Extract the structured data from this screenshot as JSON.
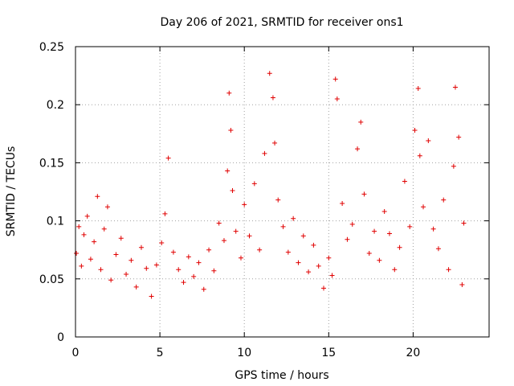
{
  "chart_data": {
    "type": "scatter",
    "title": "Day 206 of 2021, SRMTID for receiver ons1",
    "xlabel": "GPS time / hours",
    "ylabel": "SRMTID / TECUs",
    "xlim": [
      0,
      24.5
    ],
    "ylim": [
      0,
      0.25
    ],
    "x_ticks": [
      0,
      5,
      10,
      15,
      20
    ],
    "x_tick_labels": [
      "0",
      "5",
      "10",
      "15",
      "20"
    ],
    "y_ticks": [
      0,
      0.05,
      0.1,
      0.15,
      0.2,
      0.25
    ],
    "y_tick_labels": [
      "0",
      "0.05",
      "0.1",
      "0.15",
      "0.2",
      "0.25"
    ],
    "grid": true,
    "marker": "+",
    "color": "#e00000",
    "series": [
      {
        "name": "SRMTID",
        "x": [
          0.05,
          0.2,
          0.35,
          0.5,
          0.7,
          0.9,
          1.1,
          1.3,
          1.5,
          1.7,
          1.9,
          2.1,
          2.4,
          2.7,
          3.0,
          3.3,
          3.6,
          3.9,
          4.2,
          4.5,
          4.8,
          5.1,
          5.3,
          5.5,
          5.8,
          6.1,
          6.4,
          6.7,
          7.0,
          7.3,
          7.6,
          7.9,
          8.2,
          8.5,
          8.8,
          9.0,
          9.1,
          9.2,
          9.3,
          9.5,
          9.8,
          10.0,
          10.3,
          10.6,
          10.9,
          11.2,
          11.5,
          11.7,
          11.8,
          12.0,
          12.3,
          12.6,
          12.9,
          13.2,
          13.5,
          13.8,
          14.1,
          14.4,
          14.7,
          15.0,
          15.2,
          15.4,
          15.5,
          15.8,
          16.1,
          16.4,
          16.7,
          16.9,
          17.1,
          17.4,
          17.7,
          18.0,
          18.3,
          18.6,
          18.9,
          19.2,
          19.5,
          19.8,
          20.1,
          20.3,
          20.4,
          20.6,
          20.9,
          21.2,
          21.5,
          21.8,
          22.1,
          22.4,
          22.5,
          22.7,
          22.9,
          23.0
        ],
        "y": [
          0.072,
          0.095,
          0.061,
          0.088,
          0.104,
          0.067,
          0.082,
          0.121,
          0.058,
          0.093,
          0.112,
          0.049,
          0.071,
          0.085,
          0.054,
          0.066,
          0.043,
          0.077,
          0.059,
          0.035,
          0.062,
          0.081,
          0.106,
          0.154,
          0.073,
          0.058,
          0.047,
          0.069,
          0.052,
          0.064,
          0.041,
          0.075,
          0.057,
          0.098,
          0.083,
          0.143,
          0.21,
          0.178,
          0.126,
          0.091,
          0.068,
          0.114,
          0.087,
          0.132,
          0.075,
          0.158,
          0.227,
          0.206,
          0.167,
          0.118,
          0.095,
          0.073,
          0.102,
          0.064,
          0.087,
          0.056,
          0.079,
          0.061,
          0.042,
          0.068,
          0.053,
          0.222,
          0.205,
          0.115,
          0.084,
          0.097,
          0.162,
          0.185,
          0.123,
          0.072,
          0.091,
          0.066,
          0.108,
          0.089,
          0.058,
          0.077,
          0.134,
          0.095,
          0.178,
          0.214,
          0.156,
          0.112,
          0.169,
          0.093,
          0.076,
          0.118,
          0.058,
          0.147,
          0.215,
          0.172,
          0.045,
          0.098
        ]
      }
    ]
  }
}
